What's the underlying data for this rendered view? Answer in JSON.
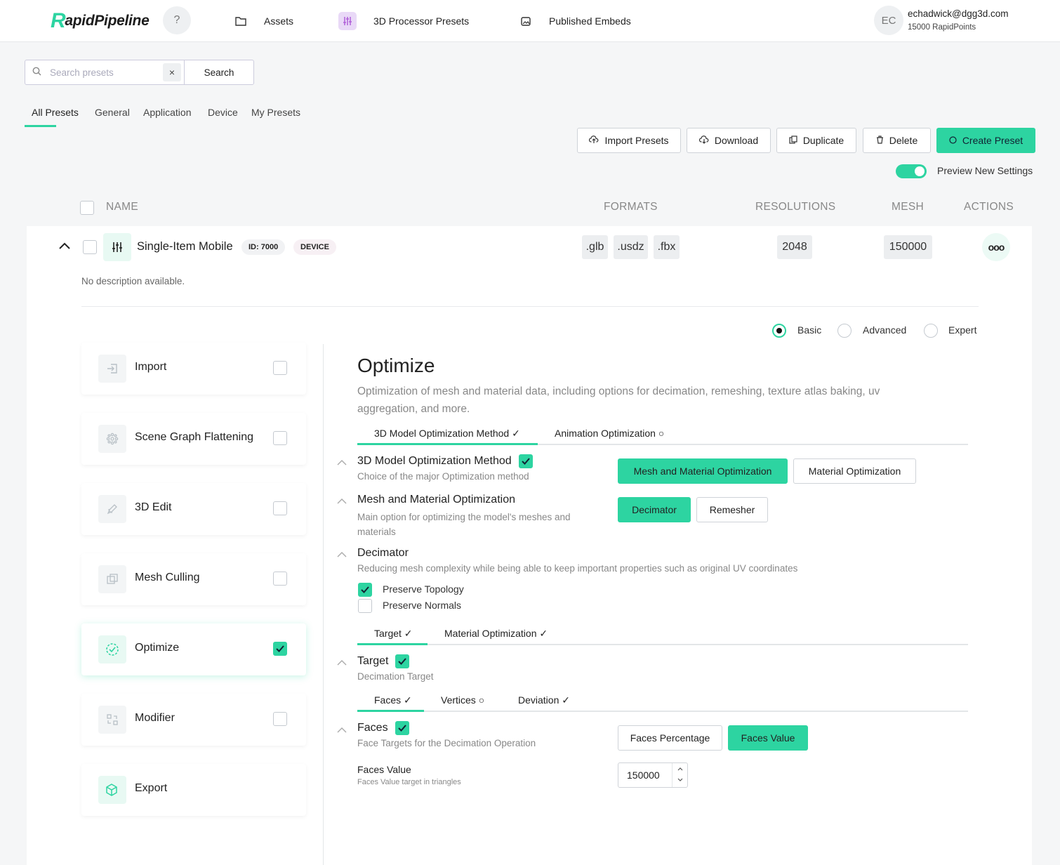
{
  "header": {
    "logo_r": "R",
    "logo_rest": "apidPipeline",
    "help": "?",
    "nav": [
      {
        "label": "Assets",
        "icon": "folder-icon"
      },
      {
        "label": "3D Processor Presets",
        "icon": "sliders-icon"
      },
      {
        "label": "Published Embeds",
        "icon": "image-icon"
      }
    ],
    "user": {
      "initials": "EC",
      "email": "echadwick@dgg3d.com",
      "points": "15000 RapidPoints"
    }
  },
  "search": {
    "placeholder": "Search presets",
    "clear": "×",
    "button": "Search"
  },
  "filter_tabs": [
    "All Presets",
    "General",
    "Application",
    "Device",
    "My Presets"
  ],
  "actions": {
    "import": "Import Presets",
    "download": "Download",
    "duplicate": "Duplicate",
    "delete": "Delete",
    "create": "Create Preset",
    "preview_toggle": "Preview New Settings"
  },
  "table": {
    "headers": {
      "name": "NAME",
      "formats": "FORMATS",
      "resolutions": "RESOLUTIONS",
      "mesh": "MESH",
      "actions": "ACTIONS"
    },
    "row": {
      "name": "Single-Item Mobile",
      "id_badge": "ID: 7000",
      "type_badge": "DEVICE",
      "formats": [
        ".glb",
        ".usdz",
        ".fbx"
      ],
      "resolution": "2048",
      "mesh": "150000",
      "more": "ooo",
      "description": "No description available."
    }
  },
  "modes": {
    "basic": "Basic",
    "advanced": "Advanced",
    "expert": "Expert",
    "selected": "Basic"
  },
  "steps": [
    {
      "label": "Import",
      "icon": "import-icon",
      "checked": false
    },
    {
      "label": "Scene Graph Flattening",
      "icon": "snowflake-icon",
      "checked": false
    },
    {
      "label": "3D Edit",
      "icon": "edit-icon",
      "checked": false
    },
    {
      "label": "Mesh Culling",
      "icon": "layers-icon",
      "checked": false
    },
    {
      "label": "Optimize",
      "icon": "optimize-icon",
      "checked": true
    },
    {
      "label": "Modifier",
      "icon": "modifier-icon",
      "checked": false
    },
    {
      "label": "Export",
      "icon": "export-icon",
      "checked": null
    }
  ],
  "optimize": {
    "title": "Optimize",
    "description": "Optimization of mesh and material data, including options for decimation, remeshing, texture atlas baking, uv aggregation, and more.",
    "tabs": [
      "3D Model Optimization Method ✓",
      "Animation Optimization ○"
    ],
    "method": {
      "title": "3D Model Optimization Method",
      "desc": "Choice of the major Optimization method",
      "options": [
        "Mesh and Material Optimization",
        "Material Optimization"
      ]
    },
    "mesh_material": {
      "title": "Mesh and Material Optimization",
      "desc": "Main option for optimizing the model's meshes and materials",
      "options": [
        "Decimator",
        "Remesher"
      ]
    },
    "decimator": {
      "title": "Decimator",
      "desc": "Reducing mesh complexity while being able to keep important properties such as original UV coordinates",
      "preserve_topology": "Preserve Topology",
      "preserve_normals": "Preserve Normals"
    },
    "sub_tabs": [
      "Target ✓",
      "Material Optimization ✓"
    ],
    "target": {
      "title": "Target",
      "desc": "Decimation Target"
    },
    "target_tabs": [
      "Faces ✓",
      "Vertices ○",
      "Deviation ✓"
    ],
    "faces": {
      "title": "Faces",
      "desc": "Face Targets for the Decimation Operation",
      "options": [
        "Faces Percentage",
        "Faces Value"
      ]
    },
    "faces_value": {
      "label": "Faces Value",
      "hint": "Faces Value target in triangles",
      "value": "150000"
    }
  },
  "colors": {
    "accent": "#2dd4a1",
    "nav_active": "#e9d9f7"
  }
}
